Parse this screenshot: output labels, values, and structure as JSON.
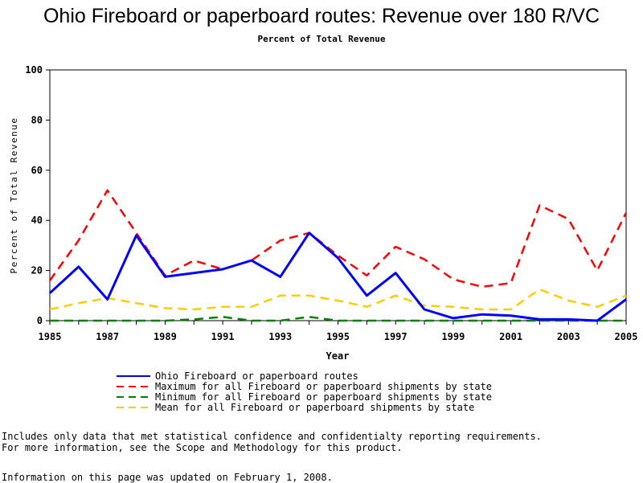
{
  "chart_data": {
    "type": "line",
    "title": "Ohio Fireboard or paperboard routes: Revenue over 180 R/VC",
    "subtitle": "Percent of Total Revenue",
    "xlabel": "Year",
    "ylabel": "Percent of Total Revenue",
    "ylim": [
      0,
      100
    ],
    "xlim": [
      1985,
      2005
    ],
    "x": [
      1985,
      1986,
      1987,
      1988,
      1989,
      1990,
      1991,
      1992,
      1993,
      1994,
      1995,
      1996,
      1997,
      1998,
      1999,
      2000,
      2001,
      2002,
      2003,
      2004,
      2005
    ],
    "x_ticks": [
      "1985",
      "1987",
      "1989",
      "1991",
      "1993",
      "1995",
      "1997",
      "1999",
      "2001",
      "2003",
      "2005"
    ],
    "y_ticks": [
      "0",
      "20",
      "40",
      "60",
      "80",
      "100"
    ],
    "grid": false,
    "legend_position": "bottom",
    "series": [
      {
        "name": "Ohio Fireboard or paperboard routes",
        "color": "#0000FF",
        "style": "solid",
        "x": [
          1985,
          1986,
          1987,
          1988,
          1989,
          1991,
          1992,
          1993,
          1994,
          1995,
          1996,
          1997,
          1998,
          1999,
          2000,
          2001,
          2002,
          2003,
          2004,
          2005
        ],
        "values": [
          11,
          21.5,
          8.5,
          34,
          17.5,
          20.5,
          24,
          17.5,
          35,
          25,
          10,
          19,
          4.5,
          1,
          2.5,
          2,
          0.5,
          0.5,
          0,
          8.5
        ]
      },
      {
        "name": "Maximum for all Fireboard or paperboard shipments by state",
        "color": "#FF0000",
        "style": "dashed",
        "values": [
          16,
          32,
          52,
          35,
          18,
          24,
          20.5,
          24,
          32,
          35,
          26,
          18,
          29.5,
          24.5,
          16.5,
          13.5,
          15,
          46,
          40.5,
          20,
          43
        ]
      },
      {
        "name": "Minimum for all Fireboard or paperboard shipments by state",
        "color": "#008000",
        "style": "dashed",
        "values": [
          0,
          0,
          0,
          0,
          0,
          0.5,
          1.5,
          0,
          0,
          1.5,
          0,
          0,
          0,
          0,
          0,
          0,
          0,
          0,
          0,
          0,
          0
        ]
      },
      {
        "name": "Mean for all Fireboard or paperboard shipments by state",
        "color": "#FFCC00",
        "style": "dashed",
        "values": [
          4.5,
          7,
          9,
          7,
          5,
          4.5,
          5.5,
          5.5,
          10,
          10,
          8,
          5.5,
          10,
          6,
          5.5,
          4.5,
          4.5,
          12.5,
          8,
          5.5,
          10
        ]
      }
    ]
  },
  "notes": {
    "line1": "Includes only data that met statistical confidence and confidentialty reporting requirements.",
    "line2": "For more information, see the Scope and Methodology for this product.",
    "updated": "Information on this page was updated on February 1, 2008."
  }
}
